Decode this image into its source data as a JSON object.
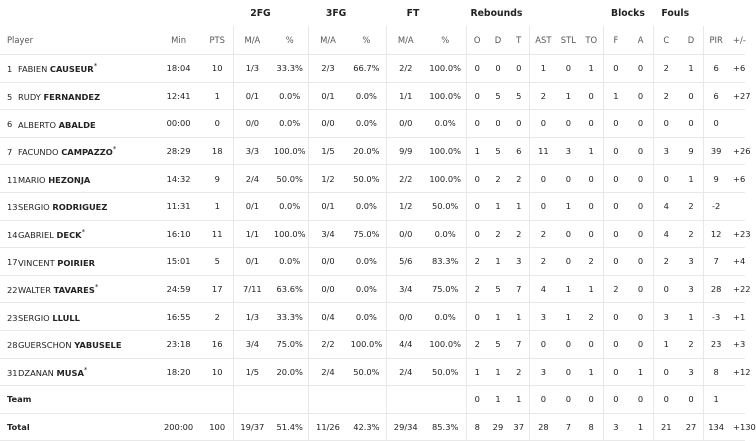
{
  "groups": {
    "fg2": "2FG",
    "fg3": "3FG",
    "ft": "FT",
    "rebounds": "Rebounds",
    "blocks": "Blocks",
    "fouls": "Fouls"
  },
  "headers": {
    "player": "Player",
    "min": "Min",
    "pts": "PTS",
    "fg2_ma": "M/A",
    "fg2_pct": "%",
    "fg3_ma": "M/A",
    "fg3_pct": "%",
    "ft_ma": "M/A",
    "ft_pct": "%",
    "reb_o": "O",
    "reb_d": "D",
    "reb_t": "T",
    "ast": "AST",
    "stl": "STL",
    "to": "TO",
    "blk_f": "F",
    "blk_a": "A",
    "foul_c": "C",
    "foul_d": "D",
    "pir": "PIR",
    "pm": "+/-"
  },
  "players": [
    {
      "num": "1",
      "first": "FABIEN",
      "last": "CAUSEUR",
      "starter": "*",
      "min": "18:04",
      "pts": "10",
      "fg2_ma": "1/3",
      "fg2_pct": "33.3%",
      "fg3_ma": "2/3",
      "fg3_pct": "66.7%",
      "ft_ma": "2/2",
      "ft_pct": "100.0%",
      "reb_o": "0",
      "reb_d": "0",
      "reb_t": "0",
      "ast": "1",
      "stl": "0",
      "to": "1",
      "blk_f": "0",
      "blk_a": "0",
      "foul_c": "2",
      "foul_d": "1",
      "pir": "6",
      "pm": "+6"
    },
    {
      "num": "5",
      "first": "RUDY",
      "last": "FERNANDEZ",
      "starter": "",
      "min": "12:41",
      "pts": "1",
      "fg2_ma": "0/1",
      "fg2_pct": "0.0%",
      "fg3_ma": "0/1",
      "fg3_pct": "0.0%",
      "ft_ma": "1/1",
      "ft_pct": "100.0%",
      "reb_o": "0",
      "reb_d": "5",
      "reb_t": "5",
      "ast": "2",
      "stl": "1",
      "to": "0",
      "blk_f": "1",
      "blk_a": "0",
      "foul_c": "2",
      "foul_d": "0",
      "pir": "6",
      "pm": "+27"
    },
    {
      "num": "6",
      "first": "ALBERTO",
      "last": "ABALDE",
      "starter": "",
      "min": "00:00",
      "pts": "0",
      "fg2_ma": "0/0",
      "fg2_pct": "0.0%",
      "fg3_ma": "0/0",
      "fg3_pct": "0.0%",
      "ft_ma": "0/0",
      "ft_pct": "0.0%",
      "reb_o": "0",
      "reb_d": "0",
      "reb_t": "0",
      "ast": "0",
      "stl": "0",
      "to": "0",
      "blk_f": "0",
      "blk_a": "0",
      "foul_c": "0",
      "foul_d": "0",
      "pir": "0",
      "pm": ""
    },
    {
      "num": "7",
      "first": "FACUNDO",
      "last": "CAMPAZZO",
      "starter": "*",
      "min": "28:29",
      "pts": "18",
      "fg2_ma": "3/3",
      "fg2_pct": "100.0%",
      "fg3_ma": "1/5",
      "fg3_pct": "20.0%",
      "ft_ma": "9/9",
      "ft_pct": "100.0%",
      "reb_o": "1",
      "reb_d": "5",
      "reb_t": "6",
      "ast": "11",
      "stl": "3",
      "to": "1",
      "blk_f": "0",
      "blk_a": "0",
      "foul_c": "3",
      "foul_d": "9",
      "pir": "39",
      "pm": "+26"
    },
    {
      "num": "11",
      "first": "MARIO",
      "last": "HEZONJA",
      "starter": "",
      "min": "14:32",
      "pts": "9",
      "fg2_ma": "2/4",
      "fg2_pct": "50.0%",
      "fg3_ma": "1/2",
      "fg3_pct": "50.0%",
      "ft_ma": "2/2",
      "ft_pct": "100.0%",
      "reb_o": "0",
      "reb_d": "2",
      "reb_t": "2",
      "ast": "0",
      "stl": "0",
      "to": "0",
      "blk_f": "0",
      "blk_a": "0",
      "foul_c": "0",
      "foul_d": "1",
      "pir": "9",
      "pm": "+6"
    },
    {
      "num": "13",
      "first": "SERGIO",
      "last": "RODRIGUEZ",
      "starter": "",
      "min": "11:31",
      "pts": "1",
      "fg2_ma": "0/1",
      "fg2_pct": "0.0%",
      "fg3_ma": "0/1",
      "fg3_pct": "0.0%",
      "ft_ma": "1/2",
      "ft_pct": "50.0%",
      "reb_o": "0",
      "reb_d": "1",
      "reb_t": "1",
      "ast": "0",
      "stl": "1",
      "to": "0",
      "blk_f": "0",
      "blk_a": "0",
      "foul_c": "4",
      "foul_d": "2",
      "pir": "-2",
      "pm": ""
    },
    {
      "num": "14",
      "first": "GABRIEL",
      "last": "DECK",
      "starter": "*",
      "min": "16:10",
      "pts": "11",
      "fg2_ma": "1/1",
      "fg2_pct": "100.0%",
      "fg3_ma": "3/4",
      "fg3_pct": "75.0%",
      "ft_ma": "0/0",
      "ft_pct": "0.0%",
      "reb_o": "0",
      "reb_d": "2",
      "reb_t": "2",
      "ast": "2",
      "stl": "0",
      "to": "0",
      "blk_f": "0",
      "blk_a": "0",
      "foul_c": "4",
      "foul_d": "2",
      "pir": "12",
      "pm": "+23"
    },
    {
      "num": "17",
      "first": "VINCENT",
      "last": "POIRIER",
      "starter": "",
      "min": "15:01",
      "pts": "5",
      "fg2_ma": "0/1",
      "fg2_pct": "0.0%",
      "fg3_ma": "0/0",
      "fg3_pct": "0.0%",
      "ft_ma": "5/6",
      "ft_pct": "83.3%",
      "reb_o": "2",
      "reb_d": "1",
      "reb_t": "3",
      "ast": "2",
      "stl": "0",
      "to": "2",
      "blk_f": "0",
      "blk_a": "0",
      "foul_c": "2",
      "foul_d": "3",
      "pir": "7",
      "pm": "+4"
    },
    {
      "num": "22",
      "first": "WALTER",
      "last": "TAVARES",
      "starter": "*",
      "min": "24:59",
      "pts": "17",
      "fg2_ma": "7/11",
      "fg2_pct": "63.6%",
      "fg3_ma": "0/0",
      "fg3_pct": "0.0%",
      "ft_ma": "3/4",
      "ft_pct": "75.0%",
      "reb_o": "2",
      "reb_d": "5",
      "reb_t": "7",
      "ast": "4",
      "stl": "1",
      "to": "1",
      "blk_f": "2",
      "blk_a": "0",
      "foul_c": "0",
      "foul_d": "3",
      "pir": "28",
      "pm": "+22"
    },
    {
      "num": "23",
      "first": "SERGIO",
      "last": "LLULL",
      "starter": "",
      "min": "16:55",
      "pts": "2",
      "fg2_ma": "1/3",
      "fg2_pct": "33.3%",
      "fg3_ma": "0/4",
      "fg3_pct": "0.0%",
      "ft_ma": "0/0",
      "ft_pct": "0.0%",
      "reb_o": "0",
      "reb_d": "1",
      "reb_t": "1",
      "ast": "3",
      "stl": "1",
      "to": "2",
      "blk_f": "0",
      "blk_a": "0",
      "foul_c": "3",
      "foul_d": "1",
      "pir": "-3",
      "pm": "+1"
    },
    {
      "num": "28",
      "first": "GUERSCHON",
      "last": "YABUSELE",
      "starter": "",
      "min": "23:18",
      "pts": "16",
      "fg2_ma": "3/4",
      "fg2_pct": "75.0%",
      "fg3_ma": "2/2",
      "fg3_pct": "100.0%",
      "ft_ma": "4/4",
      "ft_pct": "100.0%",
      "reb_o": "2",
      "reb_d": "5",
      "reb_t": "7",
      "ast": "0",
      "stl": "0",
      "to": "0",
      "blk_f": "0",
      "blk_a": "0",
      "foul_c": "1",
      "foul_d": "2",
      "pir": "23",
      "pm": "+3"
    },
    {
      "num": "31",
      "first": "DZANAN",
      "last": "MUSA",
      "starter": "*",
      "min": "18:20",
      "pts": "10",
      "fg2_ma": "1/5",
      "fg2_pct": "20.0%",
      "fg3_ma": "2/4",
      "fg3_pct": "50.0%",
      "ft_ma": "2/4",
      "ft_pct": "50.0%",
      "reb_o": "1",
      "reb_d": "1",
      "reb_t": "2",
      "ast": "3",
      "stl": "0",
      "to": "1",
      "blk_f": "0",
      "blk_a": "1",
      "foul_c": "0",
      "foul_d": "3",
      "pir": "8",
      "pm": "+12"
    }
  ],
  "team": {
    "label": "Team",
    "reb_o": "0",
    "reb_d": "1",
    "reb_t": "1",
    "ast": "0",
    "stl": "0",
    "to": "0",
    "blk_f": "0",
    "blk_a": "0",
    "foul_c": "0",
    "foul_d": "0",
    "pir": "1",
    "pm": ""
  },
  "total": {
    "label": "Total",
    "min": "200:00",
    "pts": "100",
    "fg2_ma": "19/37",
    "fg2_pct": "51.4%",
    "fg3_ma": "11/26",
    "fg3_pct": "42.3%",
    "ft_ma": "29/34",
    "ft_pct": "85.3%",
    "reb_o": "8",
    "reb_d": "29",
    "reb_t": "37",
    "ast": "28",
    "stl": "7",
    "to": "8",
    "blk_f": "3",
    "blk_a": "1",
    "foul_c": "21",
    "foul_d": "27",
    "pir": "134",
    "pm": "+130"
  }
}
